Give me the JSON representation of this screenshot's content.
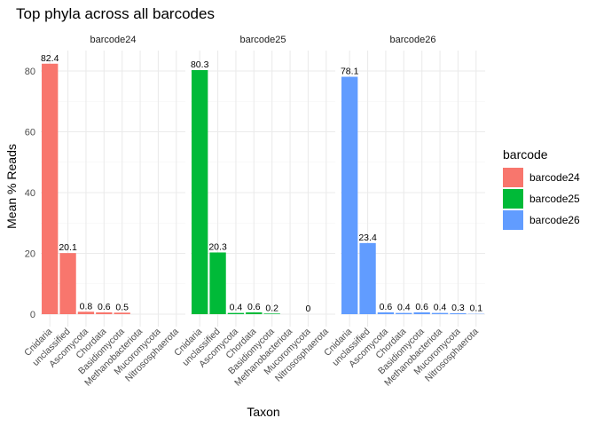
{
  "chart_data": {
    "type": "bar",
    "title": "Top phyla across all barcodes",
    "xlabel": "Taxon",
    "ylabel": "Mean % Reads",
    "ylim": [
      0,
      86
    ],
    "yticks": [
      0,
      20,
      40,
      60,
      80
    ],
    "grid": true,
    "legend": {
      "title": "barcode",
      "placement": "right"
    },
    "categories": [
      "Cnidaria",
      "unclassified",
      "Ascomycota",
      "Chordata",
      "Basidiomycota",
      "Methanobacteriota",
      "Mucoromycota",
      "Nitrososphaerota"
    ],
    "panels": [
      {
        "name": "barcode24",
        "color": "#F8766D",
        "values": [
          82.4,
          20.1,
          0.8,
          0.6,
          0.5,
          null,
          null,
          null
        ],
        "labels": [
          "82.4",
          "20.1",
          "0.8",
          "0.6",
          "0.5",
          "",
          "",
          ""
        ]
      },
      {
        "name": "barcode25",
        "color": "#00BA38",
        "values": [
          80.3,
          20.3,
          0.4,
          0.6,
          0.2,
          null,
          0,
          null
        ],
        "labels": [
          "80.3",
          "20.3",
          "0.4",
          "0.6",
          "0.2",
          "",
          "0",
          ""
        ]
      },
      {
        "name": "barcode26",
        "color": "#619CFF",
        "values": [
          78.1,
          23.4,
          0.6,
          0.4,
          0.6,
          0.4,
          0.3,
          0.1
        ],
        "labels": [
          "78.1",
          "23.4",
          "0.6",
          "0.4",
          "0.6",
          "0.4",
          "0.3",
          "0.1"
        ]
      }
    ]
  }
}
